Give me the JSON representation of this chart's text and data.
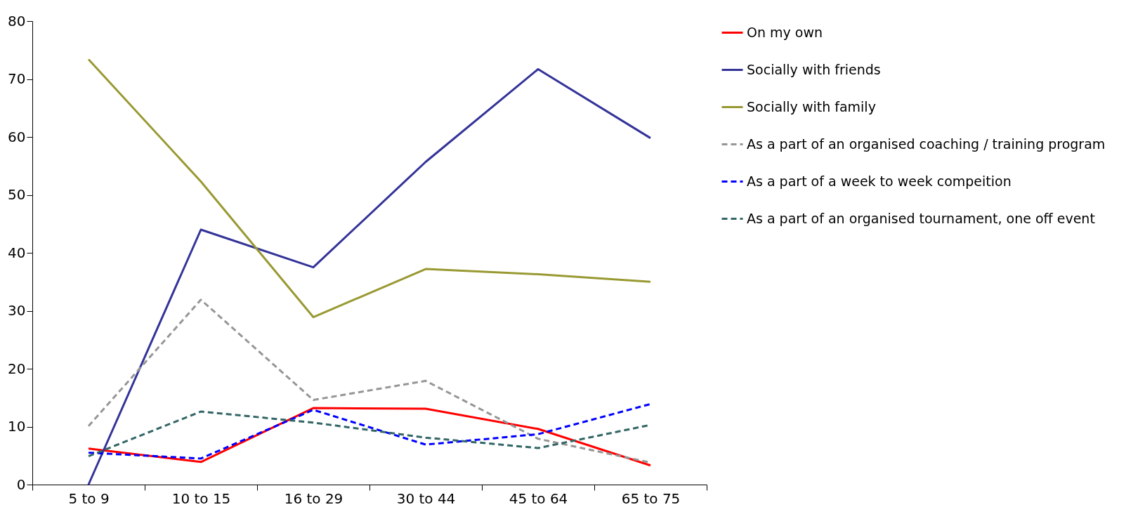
{
  "chart_data": {
    "type": "line",
    "categories": [
      "5 to 9",
      "10 to 15",
      "16 to 29",
      "30 to 44",
      "45 to 64",
      "65 to 75"
    ],
    "series": [
      {
        "name": "On my own",
        "color": "#ff0000",
        "line_style": "solid",
        "values": [
          6.2,
          3.9,
          13.2,
          13.1,
          9.6,
          3.3
        ]
      },
      {
        "name": "Socially with friends",
        "color": "#333399",
        "line_style": "solid",
        "values": [
          0,
          44,
          37.5,
          55.7,
          71.7,
          59.8
        ]
      },
      {
        "name": "Socially with family",
        "color": "#999933",
        "line_style": "solid",
        "values": [
          73.4,
          52.3,
          28.9,
          37.2,
          36.3,
          35
        ]
      },
      {
        "name": "As a part of an organised coaching / training program",
        "color": "#969696",
        "line_style": "dashed",
        "values": [
          10.1,
          31.9,
          14.6,
          17.9,
          7.9,
          3.8
        ]
      },
      {
        "name": "As a part of a week to week compeition",
        "color": "#0000ff",
        "line_style": "dashed",
        "values": [
          5.5,
          4.5,
          12.9,
          6.9,
          8.7,
          13.9
        ]
      },
      {
        "name": "As a part of an organised tournament, one off event",
        "color": "#336666",
        "line_style": "dashed",
        "values": [
          4.9,
          12.6,
          10.7,
          8.1,
          6.3,
          10.3
        ]
      }
    ],
    "ylim": [
      0,
      80
    ],
    "yticks": [
      0,
      10,
      20,
      30,
      40,
      50,
      60,
      70,
      80
    ],
    "grid": false,
    "legend": "right",
    "marker": "none"
  }
}
